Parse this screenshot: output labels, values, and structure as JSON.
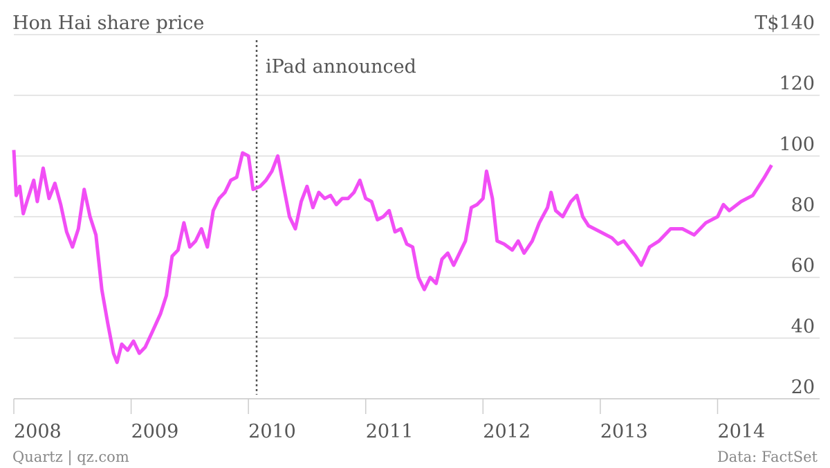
{
  "chart_data": {
    "type": "line",
    "title": "Hon Hai share price",
    "annotation": "iPad announced",
    "annotation_x": 2010.07,
    "source": "Data: FactSet",
    "credit": "Quartz | qz.com",
    "x": [
      2008.0,
      2008.02,
      2008.05,
      2008.08,
      2008.12,
      2008.17,
      2008.2,
      2008.25,
      2008.3,
      2008.35,
      2008.4,
      2008.45,
      2008.5,
      2008.55,
      2008.6,
      2008.65,
      2008.7,
      2008.75,
      2008.8,
      2008.85,
      2008.88,
      2008.92,
      2008.97,
      2009.02,
      2009.07,
      2009.12,
      2009.18,
      2009.25,
      2009.3,
      2009.35,
      2009.4,
      2009.45,
      2009.5,
      2009.55,
      2009.6,
      2009.65,
      2009.7,
      2009.75,
      2009.8,
      2009.85,
      2009.9,
      2009.95,
      2010.0,
      2010.04,
      2010.1,
      2010.15,
      2010.2,
      2010.25,
      2010.3,
      2010.35,
      2010.4,
      2010.45,
      2010.5,
      2010.55,
      2010.6,
      2010.65,
      2010.7,
      2010.75,
      2010.8,
      2010.85,
      2010.9,
      2010.95,
      2011.0,
      2011.05,
      2011.1,
      2011.15,
      2011.2,
      2011.25,
      2011.3,
      2011.35,
      2011.4,
      2011.45,
      2011.5,
      2011.55,
      2011.6,
      2011.65,
      2011.7,
      2011.75,
      2011.8,
      2011.85,
      2011.9,
      2011.95,
      2012.0,
      2012.03,
      2012.08,
      2012.12,
      2012.18,
      2012.25,
      2012.3,
      2012.35,
      2012.42,
      2012.48,
      2012.55,
      2012.58,
      2012.62,
      2012.68,
      2012.75,
      2012.8,
      2012.85,
      2012.9,
      2012.95,
      2013.0,
      2013.1,
      2013.15,
      2013.2,
      2013.3,
      2013.35,
      2013.42,
      2013.5,
      2013.6,
      2013.7,
      2013.8,
      2013.9,
      2014.0,
      2014.05,
      2014.1,
      2014.2,
      2014.3,
      2014.35,
      2014.4,
      2014.46
    ],
    "series": [
      {
        "name": "Hon Hai",
        "color": "#f14ef5",
        "values": [
          102,
          87,
          90,
          81,
          86,
          92,
          85,
          96,
          86,
          91,
          84,
          75,
          70,
          76,
          89,
          80,
          74,
          56,
          45,
          35,
          32,
          38,
          36,
          39,
          35,
          37,
          42,
          48,
          54,
          67,
          69,
          78,
          70,
          72,
          76,
          70,
          82,
          86,
          88,
          92,
          93,
          101,
          100,
          89,
          90,
          92,
          95,
          100,
          90,
          80,
          76,
          85,
          90,
          83,
          88,
          86,
          87,
          84,
          86,
          86,
          88,
          92,
          86,
          85,
          79,
          80,
          82,
          75,
          76,
          71,
          70,
          60,
          56,
          60,
          58,
          66,
          68,
          64,
          68,
          72,
          83,
          84,
          86,
          95,
          86,
          72,
          71,
          69,
          72,
          68,
          72,
          78,
          83,
          88,
          82,
          80,
          85,
          87,
          80,
          77,
          76,
          75,
          73,
          71,
          72,
          67,
          64,
          70,
          72,
          76,
          76,
          74,
          78,
          80,
          84,
          82,
          85,
          87,
          90,
          93,
          97
        ]
      }
    ],
    "xlim": [
      2008,
      2014.87
    ],
    "xticks": [
      2008,
      2009,
      2010,
      2011,
      2012,
      2013,
      2014
    ],
    "ylim": [
      20,
      140
    ],
    "yticks": [
      20,
      40,
      60,
      80,
      100,
      120,
      {
        "value": 140,
        "label": "T$140"
      }
    ],
    "grid": true
  }
}
